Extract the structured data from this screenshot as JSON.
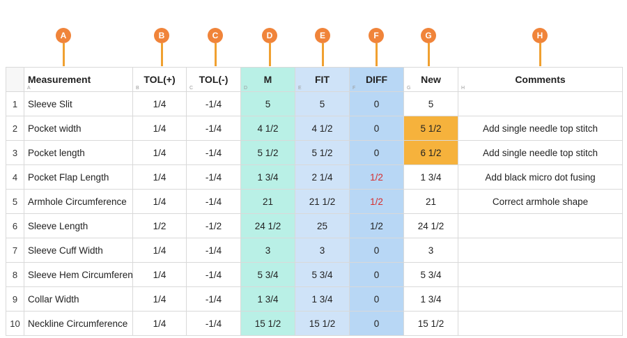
{
  "markers": [
    "A",
    "B",
    "C",
    "D",
    "E",
    "F",
    "G",
    "H"
  ],
  "columns": [
    {
      "header": "Measurement",
      "letter": "A"
    },
    {
      "header": "TOL(+)",
      "letter": "B"
    },
    {
      "header": "TOL(-)",
      "letter": "C"
    },
    {
      "header": "M",
      "letter": "D"
    },
    {
      "header": "FIT",
      "letter": "E"
    },
    {
      "header": "DIFF",
      "letter": "F"
    },
    {
      "header": "New",
      "letter": "G"
    },
    {
      "header": "Comments",
      "letter": "H"
    }
  ],
  "rows": [
    {
      "num": "1",
      "measurement": "Sleeve Slit",
      "tol_plus": "1/4",
      "tol_minus": "-1/4",
      "m": "5",
      "fit": "5",
      "diff": "0",
      "new": "5",
      "comments": ""
    },
    {
      "num": "2",
      "measurement": "Pocket width",
      "tol_plus": "1/4",
      "tol_minus": "-1/4",
      "m": "4 1/2",
      "fit": "4 1/2",
      "diff": "0",
      "new": "5 1/2",
      "comments": "Add single needle top stitch"
    },
    {
      "num": "3",
      "measurement": "Pocket length",
      "tol_plus": "1/4",
      "tol_minus": "-1/4",
      "m": "5 1/2",
      "fit": "5 1/2",
      "diff": "0",
      "new": "6 1/2",
      "comments": "Add single needle top stitch"
    },
    {
      "num": "4",
      "measurement": "Pocket Flap Length",
      "tol_plus": "1/4",
      "tol_minus": "-1/4",
      "m": "1 3/4",
      "fit": "2 1/4",
      "diff": "1/2",
      "new": "1 3/4",
      "comments": "Add black micro dot fusing"
    },
    {
      "num": "5",
      "measurement": "Armhole Circumference",
      "tol_plus": "1/4",
      "tol_minus": "-1/4",
      "m": "21",
      "fit": "21 1/2",
      "diff": "1/2",
      "new": "21",
      "comments": "Correct armhole shape"
    },
    {
      "num": "6",
      "measurement": "Sleeve Length",
      "tol_plus": "1/2",
      "tol_minus": "-1/2",
      "m": "24 1/2",
      "fit": "25",
      "diff": "1/2",
      "new": "24 1/2",
      "comments": ""
    },
    {
      "num": "7",
      "measurement": "Sleeve Cuff Width",
      "tol_plus": "1/4",
      "tol_minus": "-1/4",
      "m": "3",
      "fit": "3",
      "diff": "0",
      "new": "3",
      "comments": ""
    },
    {
      "num": "8",
      "measurement": "Sleeve Hem Circumference",
      "tol_plus": "1/4",
      "tol_minus": "-1/4",
      "m": "5 3/4",
      "fit": "5 3/4",
      "diff": "0",
      "new": "5 3/4",
      "comments": ""
    },
    {
      "num": "9",
      "measurement": "Collar Width",
      "tol_plus": "1/4",
      "tol_minus": "-1/4",
      "m": "1 3/4",
      "fit": "1 3/4",
      "diff": "0",
      "new": "1 3/4",
      "comments": ""
    },
    {
      "num": "10",
      "measurement": "Neckline Circumference",
      "tol_plus": "1/4",
      "tol_minus": "-1/4",
      "m": "15 1/2",
      "fit": "15 1/2",
      "diff": "0",
      "new": "15 1/2",
      "comments": ""
    }
  ],
  "colors": {
    "marker": "#f0843a",
    "m_column": "#b9f0e6",
    "fit_column": "#cfe3f8",
    "diff_column": "#b8d7f5",
    "new_highlight": "#f6b23c",
    "diff_alert": "#d62d2d"
  },
  "highlighted_new_rows": [
    2,
    3
  ],
  "red_diff_rows": [
    4,
    5
  ]
}
